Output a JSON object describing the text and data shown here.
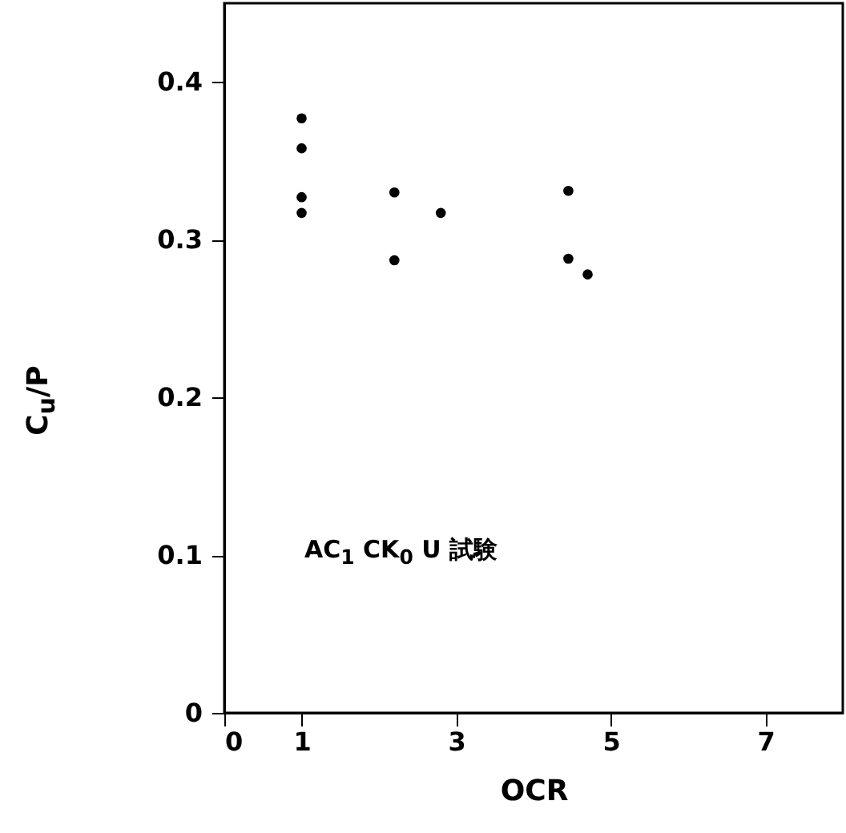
{
  "chart_data": {
    "type": "scatter",
    "xlabel": "OCR",
    "ylabel": "C$_{u}$/P",
    "annotations": [
      "AC$_{1}$  CK$_{0}$ U 試験"
    ],
    "x": [
      1,
      1,
      1,
      1,
      2.2,
      2.2,
      2.8,
      4.45,
      4.45,
      4.7
    ],
    "values": [
      0.377,
      0.358,
      0.327,
      0.317,
      0.33,
      0.287,
      0.317,
      0.331,
      0.288,
      0.278
    ],
    "color": "#000000",
    "marker": "circle",
    "xlim": [
      0,
      8
    ],
    "xticks": [
      0,
      1,
      3,
      5,
      7
    ],
    "ylim": [
      0,
      0.45
    ],
    "yticks": [
      0,
      0.1,
      0.2,
      0.3,
      0.4
    ],
    "grid": false
  }
}
